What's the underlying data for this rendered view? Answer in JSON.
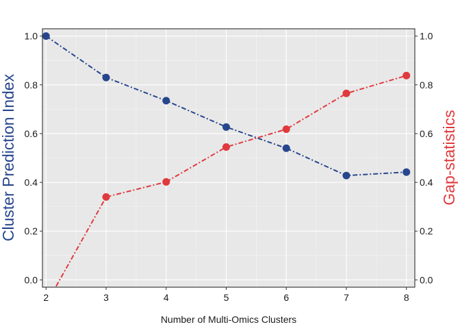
{
  "chart_data": {
    "type": "line",
    "xlabel": "Number of Multi-Omics Clusters",
    "x": [
      2,
      3,
      4,
      5,
      6,
      7,
      8
    ],
    "xticks": [
      "2",
      "3",
      "4",
      "5",
      "6",
      "7",
      "8"
    ],
    "xlim": [
      1.94,
      8.14
    ],
    "ylabel_left": "Cluster Prediction Index",
    "ylabel_right": "Gap-statistics",
    "ylim": [
      -0.03,
      1.03
    ],
    "yticks": [
      "0.0",
      "0.2",
      "0.4",
      "0.6",
      "0.8",
      "1.0"
    ],
    "ytick_values": [
      0.0,
      0.2,
      0.4,
      0.6,
      0.8,
      1.0
    ],
    "grid": true,
    "background": "#e8e8e8",
    "series": [
      {
        "axis": "left",
        "color": "#27468d",
        "values": [
          1.0,
          0.83,
          0.735,
          0.627,
          0.54,
          0.428,
          0.442
        ]
      },
      {
        "axis": "right",
        "color": "#e0393e",
        "values": [
          -0.1,
          0.34,
          0.402,
          0.545,
          0.618,
          0.765,
          0.838
        ]
      }
    ]
  }
}
